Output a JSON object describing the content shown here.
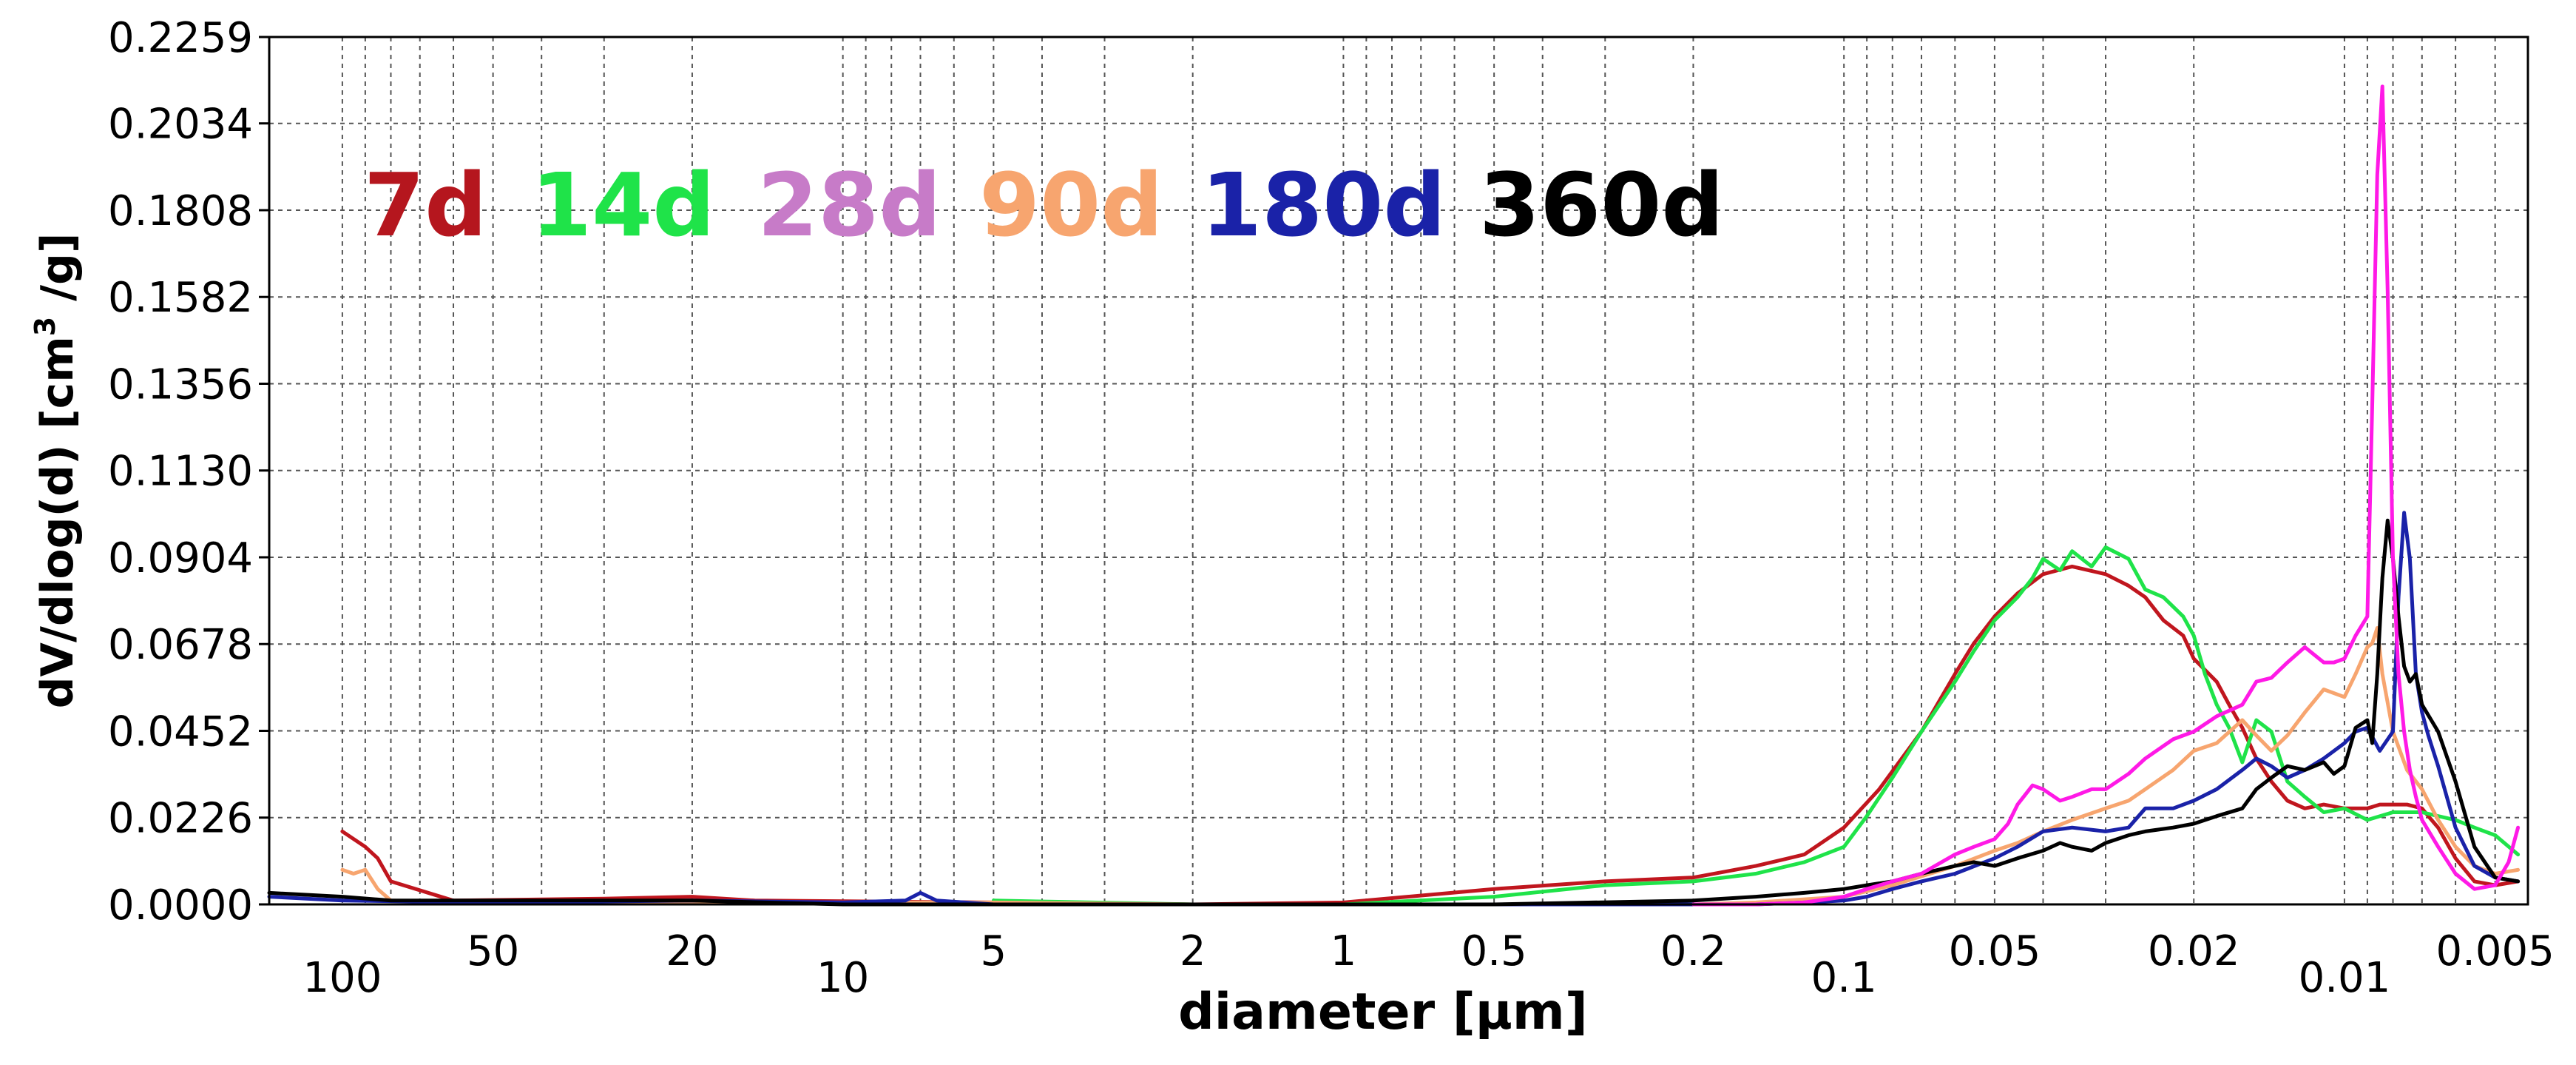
{
  "chart_data": {
    "type": "line",
    "xlabel": "diameter [µm]",
    "ylabel_main": "dV/dlog(d) [cm",
    "ylabel_sup": "3",
    "ylabel_tail": " /g]",
    "x_scale": "log",
    "x_reversed": true,
    "xlim": [
      140,
      0.0043
    ],
    "ylim": [
      0.0,
      0.2259
    ],
    "grid": true,
    "yticks": [
      "0.0000",
      "0.0226",
      "0.0452",
      "0.0678",
      "0.0904",
      "0.1130",
      "0.1356",
      "0.1582",
      "0.1808",
      "0.2034",
      "0.2259"
    ],
    "ytick_values": [
      0.0,
      0.0226,
      0.0452,
      0.0678,
      0.0904,
      0.113,
      0.1356,
      0.1582,
      0.1808,
      0.2034,
      0.2259
    ],
    "xticks": [
      {
        "label": "100",
        "value": 100,
        "row": 1
      },
      {
        "label": "50",
        "value": 50,
        "row": 0
      },
      {
        "label": "20",
        "value": 20,
        "row": 0
      },
      {
        "label": "10",
        "value": 10,
        "row": 1
      },
      {
        "label": "5",
        "value": 5,
        "row": 0
      },
      {
        "label": "2",
        "value": 2,
        "row": 0
      },
      {
        "label": "1",
        "value": 1,
        "row": 0
      },
      {
        "label": "0.5",
        "value": 0.5,
        "row": 0
      },
      {
        "label": "0.2",
        "value": 0.2,
        "row": 0
      },
      {
        "label": "0.1",
        "value": 0.1,
        "row": 1
      },
      {
        "label": "0.05",
        "value": 0.05,
        "row": 0
      },
      {
        "label": "0.02",
        "value": 0.02,
        "row": 0
      },
      {
        "label": "0.01",
        "value": 0.01,
        "row": 1
      },
      {
        "label": "0.005",
        "value": 0.005,
        "row": 0
      }
    ],
    "legend_placement": "top-left, inside plot",
    "series": [
      {
        "name": "7d",
        "color": "#c0161e",
        "x": [
          100,
          90,
          85,
          80,
          60,
          30,
          20,
          15,
          5,
          2,
          1,
          0.5,
          0.3,
          0.2,
          0.15,
          0.12,
          0.1,
          0.085,
          0.07,
          0.06,
          0.055,
          0.05,
          0.045,
          0.04,
          0.035,
          0.03,
          0.027,
          0.025,
          0.023,
          0.021,
          0.02,
          0.018,
          0.017,
          0.016,
          0.015,
          0.014,
          0.013,
          0.012,
          0.011,
          0.01,
          0.009,
          0.0085,
          0.008,
          0.0075,
          0.007,
          0.0068,
          0.0065,
          0.006,
          0.0055,
          0.005,
          0.0045
        ],
        "y": [
          0.019,
          0.015,
          0.012,
          0.006,
          0.001,
          0.0015,
          0.002,
          0.001,
          0.0005,
          0.0,
          0.0005,
          0.004,
          0.006,
          0.007,
          0.01,
          0.013,
          0.02,
          0.03,
          0.045,
          0.06,
          0.068,
          0.075,
          0.081,
          0.086,
          0.088,
          0.086,
          0.083,
          0.08,
          0.074,
          0.07,
          0.064,
          0.058,
          0.052,
          0.046,
          0.038,
          0.032,
          0.027,
          0.025,
          0.026,
          0.025,
          0.025,
          0.026,
          0.026,
          0.026,
          0.025,
          0.023,
          0.02,
          0.012,
          0.006,
          0.005,
          0.006
        ]
      },
      {
        "name": "14d",
        "color": "#1fe349",
        "x": [
          5,
          2,
          1,
          0.5,
          0.3,
          0.2,
          0.15,
          0.12,
          0.1,
          0.09,
          0.08,
          0.07,
          0.06,
          0.055,
          0.05,
          0.045,
          0.042,
          0.04,
          0.037,
          0.035,
          0.032,
          0.03,
          0.027,
          0.025,
          0.023,
          0.021,
          0.02,
          0.019,
          0.018,
          0.017,
          0.016,
          0.015,
          0.014,
          0.013,
          0.012,
          0.011,
          0.01,
          0.009,
          0.008,
          0.007,
          0.0065,
          0.006,
          0.0055,
          0.005,
          0.0045
        ],
        "y": [
          0.001,
          0.0,
          0.0,
          0.002,
          0.005,
          0.006,
          0.008,
          0.011,
          0.015,
          0.023,
          0.033,
          0.045,
          0.058,
          0.066,
          0.074,
          0.08,
          0.085,
          0.09,
          0.087,
          0.092,
          0.088,
          0.093,
          0.09,
          0.082,
          0.08,
          0.075,
          0.07,
          0.06,
          0.052,
          0.046,
          0.037,
          0.048,
          0.045,
          0.032,
          0.028,
          0.024,
          0.025,
          0.022,
          0.024,
          0.024,
          0.023,
          0.022,
          0.02,
          0.018,
          0.013
        ]
      },
      {
        "name": "28d",
        "color": "#ff19e6",
        "x": [
          0.2,
          0.15,
          0.12,
          0.1,
          0.09,
          0.08,
          0.07,
          0.06,
          0.055,
          0.05,
          0.047,
          0.045,
          0.042,
          0.04,
          0.037,
          0.035,
          0.032,
          0.03,
          0.027,
          0.025,
          0.022,
          0.02,
          0.018,
          0.016,
          0.015,
          0.014,
          0.013,
          0.012,
          0.011,
          0.0105,
          0.01,
          0.0095,
          0.009,
          0.0088,
          0.0086,
          0.0084,
          0.0082,
          0.008,
          0.0078,
          0.0076,
          0.0074,
          0.0072,
          0.007,
          0.0065,
          0.006,
          0.0055,
          0.005,
          0.0047,
          0.0045
        ],
        "y": [
          0.0,
          0.0,
          0.0005,
          0.002,
          0.004,
          0.006,
          0.008,
          0.013,
          0.015,
          0.017,
          0.021,
          0.026,
          0.031,
          0.03,
          0.027,
          0.028,
          0.03,
          0.03,
          0.034,
          0.038,
          0.043,
          0.045,
          0.049,
          0.052,
          0.058,
          0.059,
          0.063,
          0.067,
          0.063,
          0.063,
          0.064,
          0.07,
          0.075,
          0.13,
          0.19,
          0.213,
          0.16,
          0.09,
          0.06,
          0.045,
          0.035,
          0.028,
          0.022,
          0.015,
          0.008,
          0.004,
          0.005,
          0.011,
          0.02
        ]
      },
      {
        "name": "90d",
        "color": "#f7a56f",
        "x": [
          100,
          95,
          90,
          85,
          80,
          60,
          20,
          5,
          2,
          1,
          0.3,
          0.2,
          0.15,
          0.1,
          0.08,
          0.06,
          0.05,
          0.045,
          0.04,
          0.035,
          0.03,
          0.027,
          0.025,
          0.022,
          0.02,
          0.018,
          0.016,
          0.015,
          0.014,
          0.013,
          0.012,
          0.011,
          0.01,
          0.0095,
          0.009,
          0.0088,
          0.0086,
          0.0084,
          0.008,
          0.0075,
          0.007,
          0.0065,
          0.006,
          0.0055,
          0.005,
          0.0045
        ],
        "y": [
          0.009,
          0.008,
          0.009,
          0.004,
          0.001,
          0.0005,
          0.0005,
          0.0005,
          0.0,
          0.0,
          0.0,
          0.0,
          0.0005,
          0.002,
          0.005,
          0.01,
          0.014,
          0.016,
          0.019,
          0.022,
          0.025,
          0.027,
          0.03,
          0.035,
          0.04,
          0.042,
          0.048,
          0.044,
          0.04,
          0.044,
          0.05,
          0.056,
          0.054,
          0.06,
          0.067,
          0.068,
          0.072,
          0.06,
          0.045,
          0.035,
          0.03,
          0.022,
          0.015,
          0.01,
          0.008,
          0.009
        ]
      },
      {
        "name": "180d",
        "color": "#1a22a8",
        "x": [
          140,
          100,
          50,
          20,
          10,
          7.5,
          7,
          6.5,
          5,
          2,
          1,
          0.5,
          0.2,
          0.15,
          0.12,
          0.1,
          0.09,
          0.08,
          0.07,
          0.06,
          0.05,
          0.045,
          0.04,
          0.035,
          0.03,
          0.027,
          0.025,
          0.022,
          0.02,
          0.018,
          0.016,
          0.015,
          0.014,
          0.013,
          0.012,
          0.011,
          0.01,
          0.0095,
          0.009,
          0.0085,
          0.008,
          0.0078,
          0.0076,
          0.0074,
          0.0072,
          0.007,
          0.0068,
          0.0065,
          0.006,
          0.0055,
          0.005,
          0.0045
        ],
        "y": [
          0.002,
          0.001,
          0.0005,
          0.001,
          0.0005,
          0.001,
          0.003,
          0.001,
          0.0,
          0.0,
          0.0,
          0.0,
          0.0,
          0.0,
          0.0005,
          0.001,
          0.002,
          0.004,
          0.006,
          0.008,
          0.012,
          0.015,
          0.019,
          0.02,
          0.019,
          0.02,
          0.025,
          0.025,
          0.027,
          0.03,
          0.035,
          0.038,
          0.036,
          0.033,
          0.035,
          0.038,
          0.042,
          0.045,
          0.046,
          0.04,
          0.045,
          0.08,
          0.102,
          0.09,
          0.06,
          0.05,
          0.044,
          0.036,
          0.02,
          0.01,
          0.007,
          0.006
        ]
      },
      {
        "name": "360d",
        "color": "#000000",
        "x": [
          140,
          100,
          80,
          50,
          20,
          10,
          5,
          2,
          1,
          0.5,
          0.2,
          0.15,
          0.12,
          0.1,
          0.09,
          0.08,
          0.07,
          0.06,
          0.055,
          0.05,
          0.045,
          0.04,
          0.037,
          0.035,
          0.032,
          0.03,
          0.027,
          0.025,
          0.022,
          0.02,
          0.018,
          0.016,
          0.015,
          0.014,
          0.013,
          0.012,
          0.011,
          0.0105,
          0.01,
          0.0095,
          0.009,
          0.0088,
          0.0086,
          0.0084,
          0.0082,
          0.008,
          0.0078,
          0.0076,
          0.0074,
          0.0072,
          0.007,
          0.0065,
          0.006,
          0.0055,
          0.005,
          0.0045
        ],
        "y": [
          0.003,
          0.002,
          0.001,
          0.001,
          0.001,
          0.0,
          0.0,
          0.0,
          0.0,
          0.0,
          0.001,
          0.002,
          0.003,
          0.004,
          0.005,
          0.006,
          0.008,
          0.01,
          0.011,
          0.01,
          0.012,
          0.014,
          0.016,
          0.015,
          0.014,
          0.016,
          0.018,
          0.019,
          0.02,
          0.021,
          0.023,
          0.025,
          0.03,
          0.033,
          0.036,
          0.035,
          0.037,
          0.034,
          0.036,
          0.046,
          0.048,
          0.042,
          0.06,
          0.085,
          0.1,
          0.09,
          0.075,
          0.062,
          0.058,
          0.06,
          0.052,
          0.045,
          0.032,
          0.015,
          0.007,
          0.006
        ]
      }
    ]
  }
}
